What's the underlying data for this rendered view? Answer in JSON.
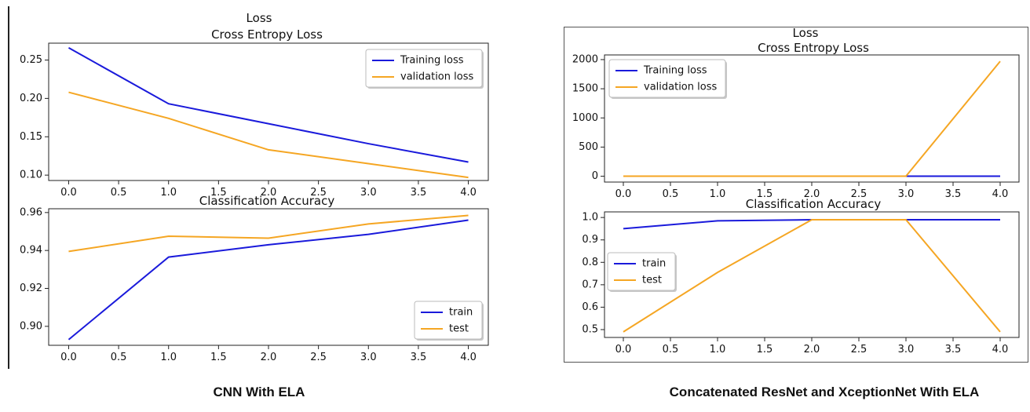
{
  "figures": [
    {
      "caption": "CNN With ELA",
      "panels": [
        {
          "suptitle": "Loss",
          "title": "Cross Entropy Loss",
          "legend_loc": "top-right",
          "xticks": [
            "0.0",
            "0.5",
            "1.0",
            "1.5",
            "2.0",
            "2.5",
            "3.0",
            "3.5",
            "4.0"
          ],
          "yticks": [
            "0.10",
            "0.15",
            "0.20",
            "0.25"
          ]
        },
        {
          "title": "Classification Accuracy",
          "legend_loc": "bottom-right",
          "xticks": [
            "0.0",
            "0.5",
            "1.0",
            "1.5",
            "2.0",
            "2.5",
            "3.0",
            "3.5",
            "4.0"
          ],
          "yticks": [
            "0.90",
            "0.92",
            "0.94",
            "0.96"
          ]
        }
      ]
    },
    {
      "caption": "Concatenated ResNet and XceptionNet With ELA",
      "panels": [
        {
          "suptitle": "Loss",
          "title": "Cross Entropy Loss",
          "legend_loc": "top-left",
          "xticks": [
            "0.0",
            "0.5",
            "1.0",
            "1.5",
            "2.0",
            "2.5",
            "3.0",
            "3.5",
            "4.0"
          ],
          "yticks": [
            "0",
            "500",
            "1000",
            "1500",
            "2000"
          ]
        },
        {
          "title": "Classification Accuracy",
          "legend_loc": "center-left",
          "xticks": [
            "0.0",
            "0.5",
            "1.0",
            "1.5",
            "2.0",
            "2.5",
            "3.0",
            "3.5",
            "4.0"
          ],
          "yticks": [
            "0.5",
            "0.6",
            "0.7",
            "0.8",
            "0.9",
            "1.0"
          ]
        }
      ]
    }
  ],
  "chart_data": [
    {
      "type": "line",
      "title": "Cross Entropy Loss",
      "xlabel": "",
      "ylabel": "",
      "x": [
        0,
        1,
        2,
        3,
        4
      ],
      "xlim": [
        -0.2,
        4.2
      ],
      "ylim": [
        0.093,
        0.272
      ],
      "series": [
        {
          "name": "Training loss",
          "color": "#1a1adb",
          "values": [
            0.266,
            0.193,
            0.167,
            0.141,
            0.117
          ]
        },
        {
          "name": "validation loss",
          "color": "#f5a623",
          "values": [
            0.208,
            0.174,
            0.133,
            0.115,
            0.097
          ]
        }
      ]
    },
    {
      "type": "line",
      "title": "Classification Accuracy",
      "xlabel": "",
      "ylabel": "",
      "x": [
        0,
        1,
        2,
        3,
        4
      ],
      "xlim": [
        -0.2,
        4.2
      ],
      "ylim": [
        0.89,
        0.962
      ],
      "series": [
        {
          "name": "train",
          "color": "#1a1adb",
          "values": [
            0.893,
            0.9365,
            0.943,
            0.9485,
            0.956
          ]
        },
        {
          "name": "test",
          "color": "#f5a623",
          "values": [
            0.9395,
            0.9475,
            0.9465,
            0.954,
            0.9585
          ]
        }
      ]
    },
    {
      "type": "line",
      "title": "Cross Entropy Loss",
      "xlabel": "",
      "ylabel": "",
      "x": [
        0,
        1,
        2,
        3,
        4
      ],
      "xlim": [
        -0.2,
        4.2
      ],
      "ylim": [
        -100,
        2080
      ],
      "series": [
        {
          "name": "Training loss",
          "color": "#1a1adb",
          "values": [
            0.1,
            0.1,
            0.1,
            0.1,
            0.1
          ]
        },
        {
          "name": "validation loss",
          "color": "#f5a623",
          "values": [
            0.3,
            0.3,
            0.3,
            0.3,
            1970
          ]
        }
      ]
    },
    {
      "type": "line",
      "title": "Classification Accuracy",
      "xlabel": "",
      "ylabel": "",
      "x": [
        0,
        1,
        2,
        3,
        4
      ],
      "xlim": [
        -0.2,
        4.2
      ],
      "ylim": [
        0.465,
        1.025
      ],
      "series": [
        {
          "name": "train",
          "color": "#1a1adb",
          "values": [
            0.95,
            0.985,
            0.99,
            0.99,
            0.99
          ]
        },
        {
          "name": "test",
          "color": "#f5a623",
          "values": [
            0.49,
            0.755,
            0.99,
            0.99,
            0.49
          ]
        }
      ]
    }
  ]
}
